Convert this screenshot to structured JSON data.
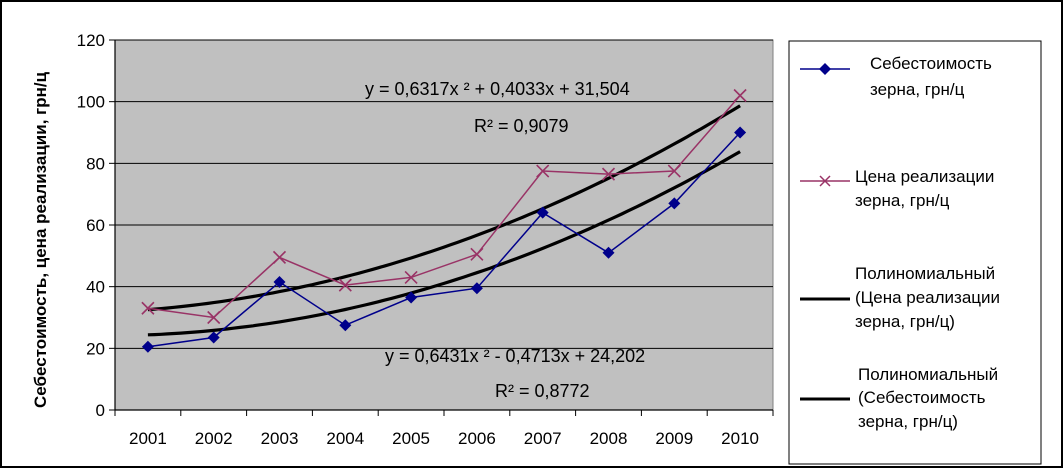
{
  "chart_data": {
    "type": "line",
    "ylabel": "Себестоимость, цена реализации, грн/ц",
    "ylim": [
      0,
      120
    ],
    "yticks": [
      "0",
      "20",
      "40",
      "60",
      "80",
      "100",
      "120"
    ],
    "categories": [
      "2001",
      "2002",
      "2003",
      "2004",
      "2005",
      "2006",
      "2007",
      "2008",
      "2009",
      "2010"
    ],
    "grid": true,
    "legend_position": "right",
    "series": [
      {
        "name": "Себестоимость зерна, грн/ц",
        "values": [
          20.5,
          23.5,
          41.5,
          27.5,
          36.5,
          39.5,
          64,
          51,
          67,
          90
        ],
        "color": "#00008b",
        "marker": "diamond"
      },
      {
        "name": "Цена реализации зерна, грн/ц",
        "values": [
          33,
          30,
          49.5,
          40.5,
          43,
          50.5,
          77.5,
          76.5,
          77.5,
          102
        ],
        "color": "#993366",
        "marker": "x"
      }
    ],
    "trendlines": [
      {
        "name": "Полиномиальный (Цена реализации зерна, грн/ц)",
        "coef": [
          0.6317,
          0.4033,
          31.504
        ],
        "equation": "y = 0,6317x ² + 0,4033x + 31,504",
        "r2": "R² = 0,9079",
        "color": "#000000"
      },
      {
        "name": "Полиномиальный (Себестоимость зерна, грн/ц)",
        "coef": [
          0.6431,
          -0.4713,
          24.202
        ],
        "equation": "y = 0,6431x ² - 0,4713x + 24,202",
        "r2": "R² = 0,8772",
        "color": "#000000"
      }
    ]
  },
  "colors": {
    "plot_background": "#c0c0c0",
    "gridline": "#000000"
  },
  "legend": {
    "items": [
      {
        "label": "Себестоимость зерна, грн/ц",
        "lines": [
          "Себестоимость",
          "зерна, грн/ц"
        ]
      },
      {
        "label": "Цена реализации зерна, грн/ц",
        "lines": [
          "Цена реализации",
          "зерна, грн/ц"
        ]
      },
      {
        "label": "Полиномиальный (Цена реализации зерна, грн/ц)",
        "lines": [
          "Полиномиальный",
          "(Цена реализации",
          "зерна, грн/ц)"
        ]
      },
      {
        "label": "Полиномиальный (Себестоимость зерна, грн/ц)",
        "lines": [
          "Полиномиальный",
          "(Себестоимость",
          "зерна, грн/ц)"
        ]
      }
    ]
  }
}
